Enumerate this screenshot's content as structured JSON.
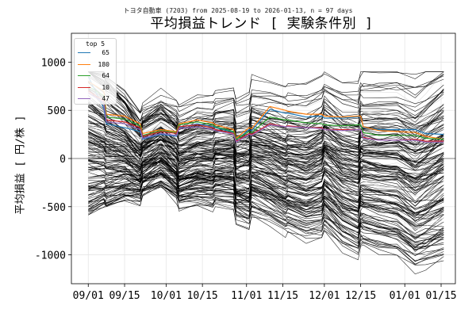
{
  "suptitle": "トヨタ自動車 (7203) from 2025-08-19 to 2026-01-13, n = 97 days",
  "chart_data": {
    "type": "line",
    "title": "平均損益トレンド [ 実験条件別 ]",
    "ylabel": "平均損益 [ 円/株 ]",
    "xlabel": "",
    "x_tick_labels": [
      "09/01",
      "09/15",
      "10/01",
      "10/15",
      "11/01",
      "11/15",
      "12/01",
      "12/15",
      "01/01",
      "01/15"
    ],
    "x_tick_days": [
      0,
      14,
      30,
      44,
      61,
      75,
      91,
      105,
      122,
      136
    ],
    "x_range_days": [
      -6.5,
      141.5
    ],
    "y_ticks": [
      -1000,
      -500,
      0,
      500,
      1000
    ],
    "ylim": [
      -1300,
      1300
    ],
    "grid": true,
    "legend": {
      "title": "top 5",
      "location": "top-left"
    },
    "key_dates": [
      0,
      6,
      7,
      14,
      20,
      21,
      28,
      34,
      35,
      42,
      48,
      49,
      56,
      57,
      62,
      63,
      70,
      76,
      77,
      84,
      90,
      91,
      98,
      104,
      105,
      106,
      112,
      119,
      126,
      130,
      137
    ],
    "top_series": [
      {
        "name": "65",
        "color": "#1f77b4",
        "values": [
          850,
          520,
          360,
          320,
          280,
          200,
          250,
          230,
          320,
          360,
          330,
          320,
          270,
          190,
          300,
          290,
          510,
          470,
          470,
          430,
          440,
          420,
          420,
          430,
          440,
          320,
          300,
          300,
          300,
          260,
          250
        ]
      },
      {
        "name": "180",
        "color": "#ff7f0e",
        "values": [
          800,
          700,
          460,
          440,
          360,
          260,
          300,
          280,
          360,
          400,
          370,
          350,
          300,
          210,
          320,
          310,
          540,
          500,
          490,
          460,
          460,
          440,
          430,
          440,
          440,
          330,
          290,
          280,
          270,
          230,
          200
        ]
      },
      {
        "name": "64",
        "color": "#2ca02c",
        "values": [
          750,
          650,
          430,
          410,
          340,
          240,
          290,
          270,
          350,
          380,
          350,
          330,
          280,
          200,
          280,
          270,
          430,
          400,
          400,
          370,
          360,
          350,
          340,
          350,
          350,
          270,
          240,
          240,
          240,
          210,
          200
        ]
      },
      {
        "name": "10",
        "color": "#d62728",
        "values": [
          700,
          600,
          400,
          380,
          320,
          230,
          280,
          260,
          330,
          350,
          320,
          300,
          260,
          180,
          260,
          250,
          360,
          330,
          340,
          320,
          320,
          300,
          300,
          300,
          300,
          220,
          190,
          190,
          200,
          180,
          180
        ]
      },
      {
        "name": "47",
        "color": "#9467bd",
        "values": [
          680,
          580,
          380,
          360,
          300,
          210,
          260,
          240,
          310,
          330,
          300,
          290,
          250,
          170,
          250,
          240,
          350,
          330,
          330,
          320,
          310,
          300,
          290,
          300,
          300,
          210,
          190,
          190,
          190,
          170,
          170
        ]
      }
    ],
    "other_series": {
      "count": 170,
      "color": "#000000",
      "value_range": [
        -1200,
        900
      ]
    }
  }
}
